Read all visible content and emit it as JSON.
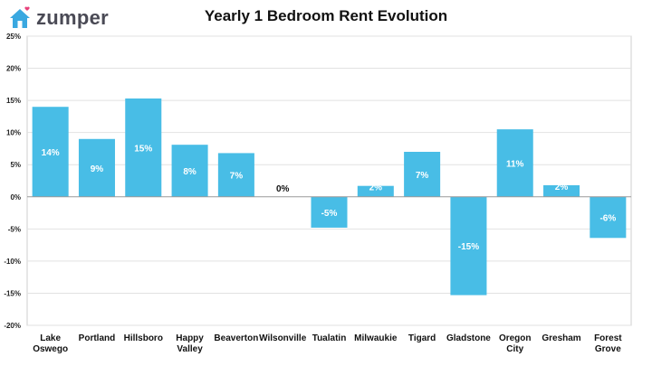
{
  "brand": {
    "name": "zumper",
    "icon": "house-icon",
    "accent": "#3aa8e0",
    "heart_color": "#e8407a"
  },
  "chart_data": {
    "type": "bar",
    "title": "Yearly 1 Bedroom Rent Evolution",
    "categories": [
      [
        "Lake",
        "Oswego"
      ],
      [
        "Portland"
      ],
      [
        "Hillsboro"
      ],
      [
        "Happy",
        "Valley"
      ],
      [
        "Beaverton"
      ],
      [
        "Wilsonville"
      ],
      [
        "Tualatin"
      ],
      [
        "Milwaukie"
      ],
      [
        "Tigard"
      ],
      [
        "Gladstone"
      ],
      [
        "Oregon",
        "City"
      ],
      [
        "Gresham"
      ],
      [
        "Forest",
        "Grove"
      ]
    ],
    "values": [
      14,
      9,
      15.3,
      8.1,
      6.8,
      0,
      -4.8,
      1.7,
      7,
      -15.3,
      10.5,
      1.8,
      -6.4
    ],
    "data_labels": [
      "14%",
      "9%",
      "15%",
      "8%",
      "7%",
      "0%",
      "-5%",
      "2%",
      "7%",
      "-15%",
      "11%",
      "2%",
      "-6%"
    ],
    "ylim": [
      -20,
      25
    ],
    "yticks": [
      25,
      20,
      15,
      10,
      5,
      0,
      -5,
      -10,
      -15,
      -20
    ],
    "ytick_labels": [
      "25%",
      "20%",
      "15%",
      "10%",
      "5%",
      "0%",
      "-5%",
      "-10%",
      "-15%",
      "-20%"
    ],
    "bar_color": "#48bde6",
    "grid": true,
    "xlabel": "",
    "ylabel": ""
  }
}
